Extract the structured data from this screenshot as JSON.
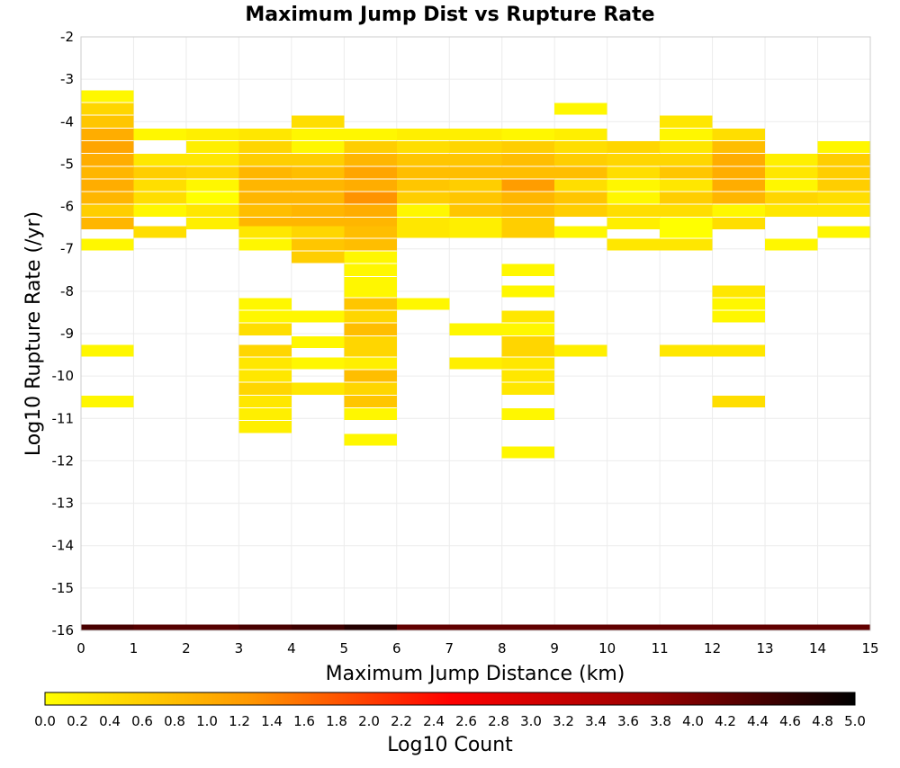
{
  "chart_data": {
    "type": "heatmap",
    "title": "Maximum Jump Dist vs Rupture Rate",
    "xlabel": "Maximum Jump Distance (km)",
    "ylabel": "Log10 Rupture Rate (/yr)",
    "xlim": [
      0,
      15
    ],
    "ylim": [
      -16,
      -2
    ],
    "x_bin_width": 1,
    "y_bin_height": 0.28,
    "x_ticks": [
      0,
      1,
      2,
      3,
      4,
      5,
      6,
      7,
      8,
      9,
      10,
      11,
      12,
      13,
      14,
      15
    ],
    "y_ticks": [
      -2,
      -3,
      -4,
      -5,
      -6,
      -7,
      -8,
      -9,
      -10,
      -11,
      -12,
      -13,
      -14,
      -15,
      -16
    ],
    "x_tick_labels": [
      "0",
      "1",
      "2",
      "3",
      "4",
      "5",
      "6",
      "7",
      "8",
      "9",
      "10",
      "11",
      "12",
      "13",
      "14",
      "15"
    ],
    "y_tick_labels": [
      "-2",
      "-3",
      "-4",
      "-5",
      "-6",
      "-7",
      "-8",
      "-9",
      "-10",
      "-11",
      "-12",
      "-13",
      "-14",
      "-15",
      "-16"
    ],
    "grid": true,
    "colorscale": {
      "label": "Log10 Count",
      "min": 0.0,
      "max": 5.0,
      "ticks": [
        "0.0",
        "0.2",
        "0.4",
        "0.6",
        "0.8",
        "1.0",
        "1.2",
        "1.4",
        "1.6",
        "1.8",
        "2.0",
        "2.2",
        "2.4",
        "2.6",
        "2.8",
        "3.0",
        "3.2",
        "3.4",
        "3.6",
        "3.8",
        "4.0",
        "4.2",
        "4.4",
        "4.6",
        "4.8",
        "5.0"
      ],
      "colors": [
        "#ffff00",
        "#ff9900",
        "#ff0000",
        "#990000",
        "#000000"
      ]
    },
    "columns": [
      {
        "x": 0,
        "cells": [
          [
            -3.4,
            0.1
          ],
          [
            -3.7,
            0.5
          ],
          [
            -4.0,
            0.7
          ],
          [
            -4.3,
            1.0
          ],
          [
            -4.6,
            1.1
          ],
          [
            -4.9,
            1.0
          ],
          [
            -5.2,
            0.9
          ],
          [
            -5.5,
            1.0
          ],
          [
            -5.8,
            0.9
          ],
          [
            -6.1,
            0.6
          ],
          [
            -6.4,
            0.9
          ],
          [
            -6.9,
            0.1
          ],
          [
            -9.4,
            0.1
          ],
          [
            -10.6,
            0.1
          ]
        ]
      },
      {
        "x": 1,
        "cells": [
          [
            -4.3,
            0.1
          ],
          [
            -4.9,
            0.3
          ],
          [
            -5.2,
            0.6
          ],
          [
            -5.5,
            0.4
          ],
          [
            -5.8,
            0.4
          ],
          [
            -6.1,
            0.1
          ],
          [
            -6.6,
            0.4
          ]
        ]
      },
      {
        "x": 2,
        "cells": [
          [
            -4.3,
            0.2
          ],
          [
            -4.6,
            0.2
          ],
          [
            -4.9,
            0.3
          ],
          [
            -5.2,
            0.5
          ],
          [
            -5.5,
            0.1
          ],
          [
            -5.8,
            0.0
          ],
          [
            -6.1,
            0.3
          ],
          [
            -6.4,
            0.2
          ]
        ]
      },
      {
        "x": 3,
        "cells": [
          [
            -4.3,
            0.3
          ],
          [
            -4.6,
            0.5
          ],
          [
            -4.9,
            0.6
          ],
          [
            -5.2,
            0.9
          ],
          [
            -5.5,
            0.9
          ],
          [
            -5.8,
            0.9
          ],
          [
            -6.1,
            0.8
          ],
          [
            -6.4,
            0.9
          ],
          [
            -6.6,
            0.3
          ],
          [
            -6.9,
            0.1
          ],
          [
            -8.3,
            0.1
          ],
          [
            -8.6,
            0.1
          ],
          [
            -8.9,
            0.4
          ],
          [
            -9.4,
            0.5
          ],
          [
            -9.7,
            0.3
          ],
          [
            -10.0,
            0.3
          ],
          [
            -10.3,
            0.5
          ],
          [
            -10.6,
            0.3
          ],
          [
            -10.9,
            0.2
          ],
          [
            -11.2,
            0.2
          ]
        ]
      },
      {
        "x": 4,
        "cells": [
          [
            -4.0,
            0.4
          ],
          [
            -4.3,
            0.1
          ],
          [
            -4.6,
            0.1
          ],
          [
            -4.9,
            0.6
          ],
          [
            -5.2,
            0.8
          ],
          [
            -5.5,
            0.9
          ],
          [
            -5.8,
            0.9
          ],
          [
            -6.1,
            0.9
          ],
          [
            -6.4,
            0.9
          ],
          [
            -6.6,
            0.5
          ],
          [
            -6.9,
            0.7
          ],
          [
            -7.2,
            0.6
          ],
          [
            -8.6,
            0.1
          ],
          [
            -9.2,
            0.1
          ],
          [
            -9.7,
            0.1
          ],
          [
            -10.3,
            0.3
          ]
        ]
      },
      {
        "x": 5,
        "cells": [
          [
            -4.3,
            0.1
          ],
          [
            -4.6,
            0.6
          ],
          [
            -4.9,
            0.9
          ],
          [
            -5.2,
            1.1
          ],
          [
            -5.5,
            1.0
          ],
          [
            -5.8,
            1.3
          ],
          [
            -6.1,
            1.0
          ],
          [
            -6.4,
            0.9
          ],
          [
            -6.6,
            0.8
          ],
          [
            -6.9,
            0.8
          ],
          [
            -7.2,
            0.1
          ],
          [
            -7.5,
            0.1
          ],
          [
            -7.8,
            0.1
          ],
          [
            -8.0,
            0.1
          ],
          [
            -8.3,
            0.7
          ],
          [
            -8.6,
            0.5
          ],
          [
            -8.9,
            0.8
          ],
          [
            -9.2,
            0.5
          ],
          [
            -9.4,
            0.5
          ],
          [
            -9.7,
            0.2
          ],
          [
            -10.0,
            0.8
          ],
          [
            -10.3,
            0.5
          ],
          [
            -10.6,
            0.7
          ],
          [
            -10.9,
            0.1
          ],
          [
            -11.5,
            0.1
          ]
        ]
      },
      {
        "x": 6,
        "cells": [
          [
            -4.3,
            0.2
          ],
          [
            -4.6,
            0.4
          ],
          [
            -4.9,
            0.7
          ],
          [
            -5.2,
            0.8
          ],
          [
            -5.5,
            0.7
          ],
          [
            -5.8,
            0.6
          ],
          [
            -6.1,
            0.1
          ],
          [
            -6.4,
            0.3
          ],
          [
            -6.6,
            0.3
          ],
          [
            -8.3,
            0.1
          ]
        ]
      },
      {
        "x": 7,
        "cells": [
          [
            -4.3,
            0.2
          ],
          [
            -4.6,
            0.5
          ],
          [
            -4.9,
            0.7
          ],
          [
            -5.2,
            0.8
          ],
          [
            -5.5,
            0.6
          ],
          [
            -5.8,
            0.7
          ],
          [
            -6.1,
            0.7
          ],
          [
            -6.4,
            0.2
          ],
          [
            -6.6,
            0.2
          ],
          [
            -8.9,
            0.1
          ],
          [
            -9.7,
            0.2
          ]
        ]
      },
      {
        "x": 8,
        "cells": [
          [
            -4.3,
            0.1
          ],
          [
            -4.6,
            0.6
          ],
          [
            -4.9,
            0.8
          ],
          [
            -5.2,
            0.8
          ],
          [
            -5.5,
            1.2
          ],
          [
            -5.8,
            0.9
          ],
          [
            -6.1,
            0.8
          ],
          [
            -6.4,
            0.6
          ],
          [
            -6.6,
            0.6
          ],
          [
            -7.5,
            0.1
          ],
          [
            -8.0,
            0.1
          ],
          [
            -8.6,
            0.3
          ],
          [
            -8.9,
            0.1
          ],
          [
            -9.2,
            0.5
          ],
          [
            -9.4,
            0.5
          ],
          [
            -9.7,
            0.3
          ],
          [
            -10.0,
            0.3
          ],
          [
            -10.3,
            0.3
          ],
          [
            -10.9,
            0.1
          ],
          [
            -11.8,
            0.1
          ]
        ]
      },
      {
        "x": 9,
        "cells": [
          [
            -3.7,
            0.1
          ],
          [
            -4.3,
            0.2
          ],
          [
            -4.6,
            0.4
          ],
          [
            -4.9,
            0.6
          ],
          [
            -5.2,
            0.8
          ],
          [
            -5.5,
            0.4
          ],
          [
            -5.8,
            0.7
          ],
          [
            -6.1,
            0.6
          ],
          [
            -6.6,
            0.1
          ],
          [
            -9.4,
            0.2
          ]
        ]
      },
      {
        "x": 10,
        "cells": [
          [
            -4.6,
            0.5
          ],
          [
            -4.9,
            0.5
          ],
          [
            -5.2,
            0.4
          ],
          [
            -5.5,
            0.1
          ],
          [
            -5.8,
            0.1
          ],
          [
            -6.1,
            0.4
          ],
          [
            -6.4,
            0.2
          ],
          [
            -6.9,
            0.3
          ]
        ]
      },
      {
        "x": 11,
        "cells": [
          [
            -4.0,
            0.3
          ],
          [
            -4.3,
            0.1
          ],
          [
            -4.6,
            0.3
          ],
          [
            -4.9,
            0.5
          ],
          [
            -5.2,
            0.7
          ],
          [
            -5.5,
            0.3
          ],
          [
            -5.8,
            0.6
          ],
          [
            -6.1,
            0.4
          ],
          [
            -6.4,
            0.0
          ],
          [
            -6.6,
            0.0
          ],
          [
            -6.9,
            0.3
          ],
          [
            -9.4,
            0.3
          ]
        ]
      },
      {
        "x": 12,
        "cells": [
          [
            -4.3,
            0.4
          ],
          [
            -4.6,
            0.8
          ],
          [
            -4.9,
            1.0
          ],
          [
            -5.2,
            1.0
          ],
          [
            -5.5,
            1.0
          ],
          [
            -5.8,
            0.9
          ],
          [
            -6.1,
            0.1
          ],
          [
            -6.4,
            0.4
          ],
          [
            -8.0,
            0.3
          ],
          [
            -8.3,
            0.1
          ],
          [
            -8.6,
            0.1
          ],
          [
            -9.4,
            0.3
          ],
          [
            -10.6,
            0.4
          ]
        ]
      },
      {
        "x": 13,
        "cells": [
          [
            -4.9,
            0.2
          ],
          [
            -5.2,
            0.3
          ],
          [
            -5.5,
            0.1
          ],
          [
            -5.8,
            0.5
          ],
          [
            -6.1,
            0.3
          ],
          [
            -6.9,
            0.1
          ]
        ]
      },
      {
        "x": 14,
        "cells": [
          [
            -4.6,
            0.1
          ],
          [
            -4.9,
            0.6
          ],
          [
            -5.2,
            0.6
          ],
          [
            -5.5,
            0.6
          ],
          [
            -5.8,
            0.4
          ],
          [
            -6.1,
            0.3
          ],
          [
            -6.6,
            0.1
          ]
        ]
      }
    ],
    "bottom_row": {
      "y": -16.0,
      "values": [
        4.4,
        4.3,
        4.3,
        4.4,
        4.5,
        4.7,
        4.2,
        4.2,
        4.2,
        4.2,
        4.2,
        4.2,
        4.2,
        4.2,
        4.2
      ]
    }
  }
}
